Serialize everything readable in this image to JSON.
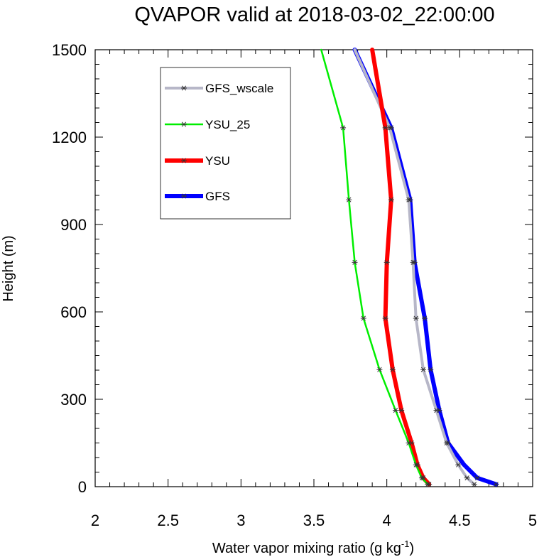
{
  "chart_data": {
    "type": "line",
    "title": "QVAPOR valid at 2018-03-02_22:00:00",
    "xlabel_main": "Water vapor mixing ratio (g kg",
    "xlabel_sup": "-1",
    "xlabel_tail": ")",
    "ylabel": "Height (m)",
    "xlim": [
      2,
      5
    ],
    "ylim": [
      0,
      1500
    ],
    "x_ticks": [
      2,
      2.5,
      3,
      3.5,
      4,
      4.5,
      5
    ],
    "x_tick_labels": [
      "2",
      "2.5",
      "3",
      "3.5",
      "4",
      "4.5",
      "5"
    ],
    "y_ticks": [
      0,
      300,
      600,
      900,
      1200,
      1500
    ],
    "y_tick_labels": [
      "0",
      "300",
      "600",
      "900",
      "1200",
      "1500"
    ],
    "legend_position": "top-left",
    "series": [
      {
        "name": "GFS",
        "color": "#0000ff",
        "line_width": "thick",
        "marker": "asterisk",
        "points": [
          [
            4.75,
            8
          ],
          [
            4.62,
            30
          ],
          [
            4.53,
            75
          ],
          [
            4.42,
            150
          ],
          [
            4.36,
            262
          ],
          [
            4.3,
            402
          ],
          [
            4.26,
            578
          ],
          [
            4.19,
            770
          ],
          [
            4.16,
            985
          ],
          [
            4.03,
            1232
          ],
          [
            3.78,
            1500
          ]
        ],
        "markers_at": [
          [
            4.75,
            8
          ],
          [
            4.62,
            30
          ],
          [
            4.42,
            150
          ],
          [
            4.36,
            262
          ],
          [
            4.3,
            402
          ],
          [
            4.26,
            578
          ],
          [
            4.19,
            770
          ],
          [
            4.16,
            985
          ],
          [
            4.03,
            1232
          ]
        ]
      },
      {
        "name": "GFS_wscale",
        "color": "#b7b7c8",
        "line_width": "medium",
        "marker": "asterisk",
        "points": [
          [
            4.6,
            8
          ],
          [
            4.55,
            30
          ],
          [
            4.49,
            75
          ],
          [
            4.41,
            150
          ],
          [
            4.34,
            262
          ],
          [
            4.25,
            402
          ],
          [
            4.2,
            578
          ],
          [
            4.18,
            770
          ],
          [
            4.15,
            985
          ],
          [
            4.02,
            1232
          ],
          [
            3.78,
            1500
          ]
        ],
        "markers_at": [
          [
            4.6,
            8
          ],
          [
            4.55,
            30
          ],
          [
            4.49,
            75
          ],
          [
            4.41,
            150
          ],
          [
            4.34,
            262
          ],
          [
            4.25,
            402
          ],
          [
            4.2,
            578
          ],
          [
            4.18,
            770
          ],
          [
            4.15,
            985
          ],
          [
            4.02,
            1232
          ]
        ]
      },
      {
        "name": "YSU",
        "color": "#ff0000",
        "line_width": "thick",
        "marker": "asterisk",
        "points": [
          [
            4.29,
            8
          ],
          [
            4.25,
            30
          ],
          [
            4.21,
            75
          ],
          [
            4.17,
            150
          ],
          [
            4.1,
            262
          ],
          [
            4.04,
            402
          ],
          [
            3.99,
            578
          ],
          [
            4.0,
            770
          ],
          [
            4.03,
            985
          ],
          [
            3.99,
            1232
          ],
          [
            3.9,
            1500
          ]
        ],
        "markers_at": [
          [
            4.29,
            8
          ],
          [
            4.25,
            30
          ],
          [
            4.21,
            75
          ],
          [
            4.17,
            150
          ],
          [
            4.1,
            262
          ],
          [
            4.04,
            402
          ],
          [
            3.99,
            578
          ],
          [
            4.0,
            770
          ],
          [
            4.03,
            985
          ],
          [
            3.99,
            1232
          ]
        ]
      },
      {
        "name": "YSU_25",
        "color": "#00ee00",
        "line_width": "thin",
        "marker": "asterisk",
        "points": [
          [
            4.28,
            8
          ],
          [
            4.24,
            30
          ],
          [
            4.2,
            75
          ],
          [
            4.15,
            150
          ],
          [
            4.06,
            262
          ],
          [
            3.95,
            402
          ],
          [
            3.84,
            578
          ],
          [
            3.78,
            770
          ],
          [
            3.74,
            985
          ],
          [
            3.7,
            1232
          ],
          [
            3.55,
            1500
          ]
        ],
        "markers_at": [
          [
            4.28,
            8
          ],
          [
            4.24,
            30
          ],
          [
            4.2,
            75
          ],
          [
            4.15,
            150
          ],
          [
            4.06,
            262
          ],
          [
            3.95,
            402
          ],
          [
            3.84,
            578
          ],
          [
            3.78,
            770
          ],
          [
            3.74,
            985
          ],
          [
            3.7,
            1232
          ]
        ]
      }
    ],
    "legend_order": [
      "GFS_wscale",
      "YSU_25",
      "YSU",
      "GFS"
    ]
  }
}
